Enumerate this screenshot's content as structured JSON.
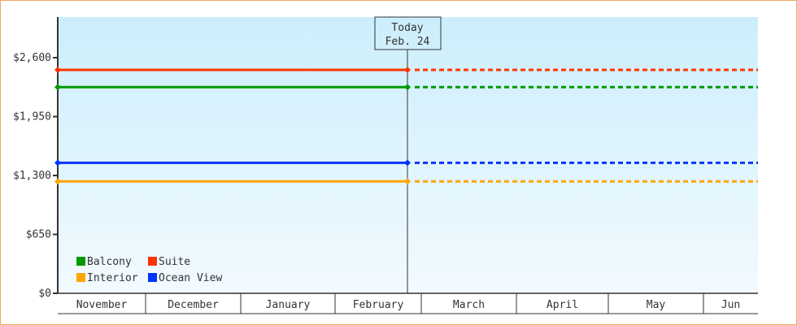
{
  "chart_data": {
    "type": "line",
    "ylim": [
      0,
      3250
    ],
    "yticks": [
      0,
      650,
      1300,
      1950,
      2600
    ],
    "ytick_labels": [
      "$0",
      "$650",
      "$1,300",
      "$1,950",
      "$2,600"
    ],
    "x_categories": [
      "November",
      "December",
      "January",
      "February",
      "March",
      "April",
      "May",
      "Jun"
    ],
    "marker": {
      "line1": "Today",
      "line2": "Feb. 24"
    },
    "grid": false,
    "legend_position": "bottom-left",
    "series": [
      {
        "name": "Balcony",
        "color": "#009900",
        "value": 2275
      },
      {
        "name": "Suite",
        "color": "#ff3300",
        "value": 2465
      },
      {
        "name": "Interior",
        "color": "#ffa500",
        "value": 1235
      },
      {
        "name": "Ocean View",
        "color": "#0033ff",
        "value": 1440
      }
    ],
    "note": ""
  }
}
